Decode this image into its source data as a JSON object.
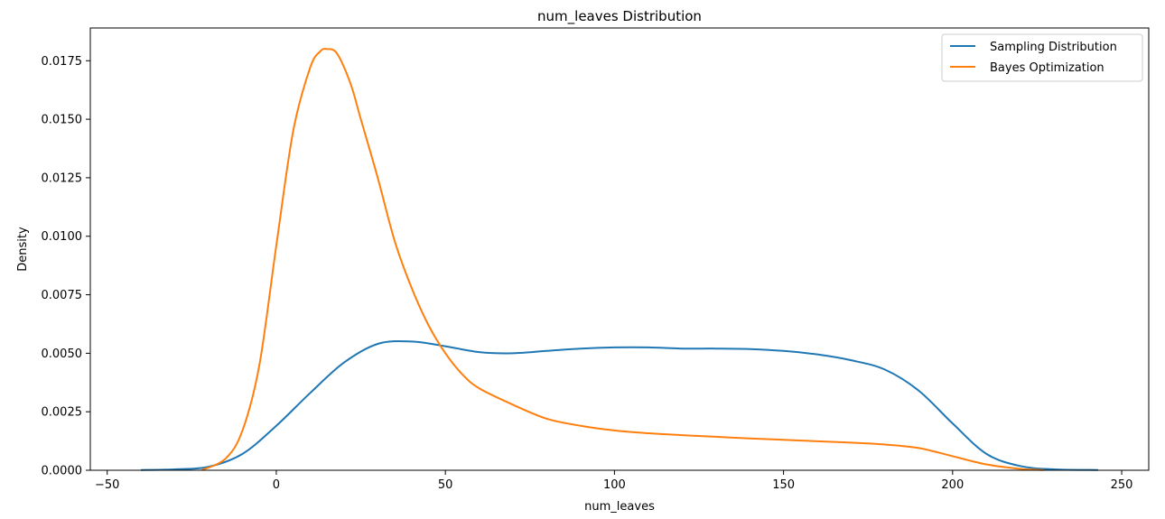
{
  "chart_data": {
    "type": "line",
    "title": "num_leaves Distribution",
    "xlabel": "num_leaves",
    "ylabel": "Density",
    "xlim": [
      -55,
      258
    ],
    "ylim": [
      0,
      0.0189
    ],
    "xticks": [
      -50,
      0,
      50,
      100,
      150,
      200,
      250
    ],
    "xtick_labels": [
      "−50",
      "0",
      "50",
      "100",
      "150",
      "200",
      "250"
    ],
    "yticks": [
      0,
      0.0025,
      0.005,
      0.0075,
      0.01,
      0.0125,
      0.015,
      0.0175
    ],
    "ytick_labels": [
      "0.0000",
      "0.0025",
      "0.0050",
      "0.0075",
      "0.0100",
      "0.0125",
      "0.0150",
      "0.0175"
    ],
    "grid": false,
    "legend_position": "top-right",
    "series": [
      {
        "name": "Sampling Distribution",
        "color": "#1f77b4",
        "x": [
          -40,
          -30,
          -20,
          -10,
          0,
          10,
          20,
          30,
          40,
          50,
          60,
          70,
          80,
          90,
          100,
          110,
          120,
          130,
          140,
          150,
          160,
          170,
          180,
          190,
          200,
          210,
          220,
          230,
          243
        ],
        "y": [
          1e-05,
          4e-05,
          0.00015,
          0.0007,
          0.0019,
          0.0033,
          0.0046,
          0.0054,
          0.0055,
          0.0053,
          0.00505,
          0.005,
          0.0051,
          0.0052,
          0.00525,
          0.00525,
          0.0052,
          0.0052,
          0.00518,
          0.0051,
          0.00495,
          0.0047,
          0.0043,
          0.0034,
          0.002,
          0.0007,
          0.00018,
          4e-05,
          1e-05
        ]
      },
      {
        "name": "Bayes Optimization",
        "color": "#ff7f0e",
        "x": [
          -22,
          -15,
          -10,
          -5,
          0,
          5,
          10,
          13,
          15,
          18,
          22,
          25,
          30,
          35,
          40,
          45,
          50,
          55,
          60,
          70,
          80,
          90,
          100,
          110,
          120,
          130,
          140,
          150,
          160,
          170,
          180,
          190,
          200,
          210,
          220,
          227
        ],
        "y": [
          1e-05,
          0.0005,
          0.0017,
          0.0045,
          0.0096,
          0.0145,
          0.0172,
          0.0179,
          0.018,
          0.0178,
          0.0165,
          0.015,
          0.0125,
          0.0098,
          0.0078,
          0.0062,
          0.005,
          0.0041,
          0.0035,
          0.0028,
          0.0022,
          0.0019,
          0.0017,
          0.00158,
          0.0015,
          0.00143,
          0.00136,
          0.0013,
          0.00124,
          0.00118,
          0.0011,
          0.00095,
          0.0006,
          0.00025,
          6e-05,
          1e-05
        ]
      }
    ]
  }
}
